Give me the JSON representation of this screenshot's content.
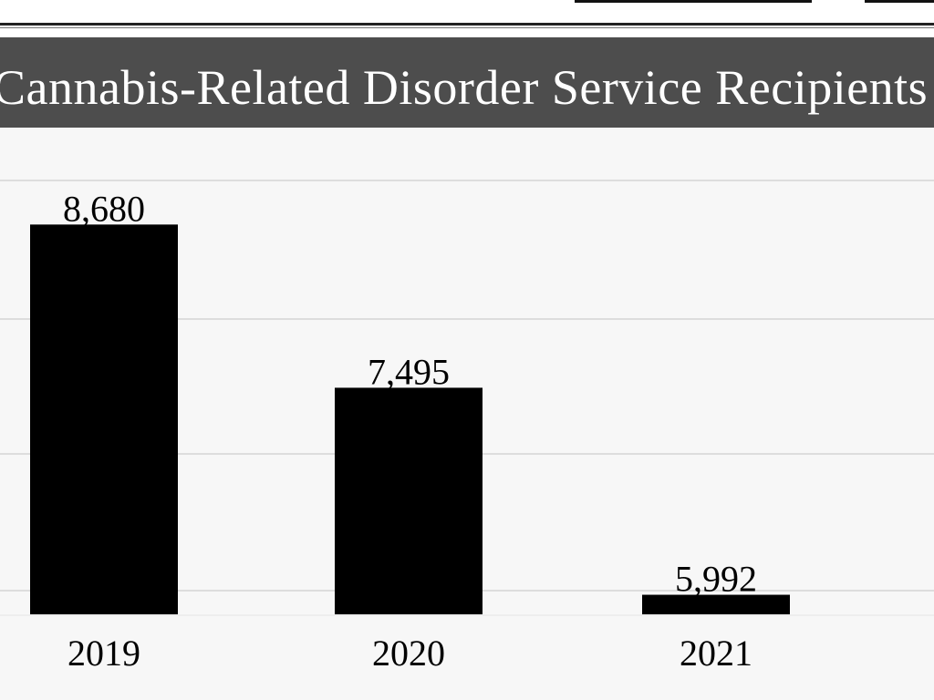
{
  "title_bar": {
    "title": "Cannabis-Related Disorder Service Recipients"
  },
  "chart_data": {
    "type": "bar",
    "title": "Cannabis-Related Disorder Service Recipients",
    "xlabel": "",
    "ylabel": "",
    "categories": [
      "2019",
      "2020",
      "2021"
    ],
    "values": [
      8680,
      7495,
      5992
    ],
    "value_labels": [
      "8,680",
      "7,495",
      "5,992"
    ],
    "ylim": [
      5850,
      9000
    ],
    "grid": true,
    "bar_color": "#000000",
    "title_bar_color": "#4d4d4d",
    "gridline_color": "#dddddd"
  }
}
